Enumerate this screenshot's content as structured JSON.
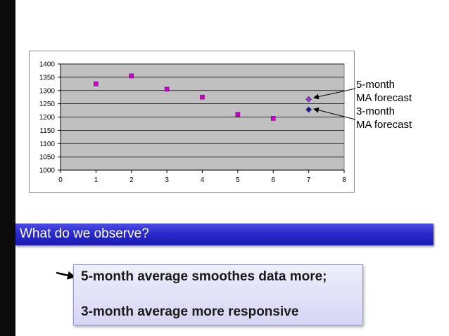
{
  "chart_data": {
    "type": "scatter",
    "title": "",
    "xlabel": "",
    "ylabel": "",
    "xlim": [
      0,
      8
    ],
    "ylim": [
      1000,
      1400
    ],
    "x_ticks": [
      "0",
      "1",
      "2",
      "3",
      "4",
      "5",
      "6",
      "7",
      "8"
    ],
    "y_ticks": [
      "1000",
      "1050",
      "1100",
      "1150",
      "1200",
      "1250",
      "1300",
      "1350",
      "1400"
    ],
    "grid": "horizontal",
    "plot_background": "#c0c0c0",
    "series": [
      {
        "color": "#cc00cc",
        "marker": "square",
        "points": [
          {
            "x": 1,
            "y": 1325
          },
          {
            "x": 2,
            "y": 1355
          },
          {
            "x": 3,
            "y": 1305
          },
          {
            "x": 4,
            "y": 1275
          },
          {
            "x": 5,
            "y": 1210
          },
          {
            "x": 6,
            "y": 1195
          }
        ]
      },
      {
        "name": "5-month MA forecast",
        "color": "#9933cc",
        "marker": "diamond",
        "points": [
          {
            "x": 7,
            "y": 1267
          }
        ]
      },
      {
        "name": "3-month MA forecast",
        "color": "#1a1a8c",
        "marker": "diamond",
        "points": [
          {
            "x": 7,
            "y": 1228
          }
        ]
      }
    ],
    "annotations": [
      {
        "lines": [
          "5-month",
          "MA forecast"
        ]
      },
      {
        "lines": [
          "3-month",
          "MA forecast"
        ]
      }
    ]
  },
  "banner": {
    "text": "What do we observe?",
    "color": "#2b2bcc"
  },
  "notes": {
    "line1": "5-month average smoothes data more;",
    "line2": "3-month average more responsive"
  }
}
